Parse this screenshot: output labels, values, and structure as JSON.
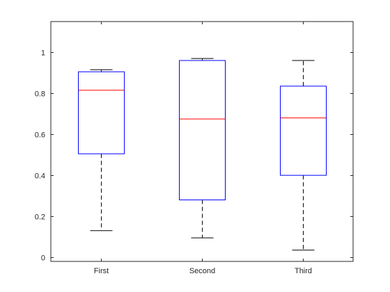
{
  "chart_data": {
    "type": "box",
    "title": "",
    "xlabel": "",
    "ylabel": "",
    "ylim": [
      -0.02,
      1.15
    ],
    "yticks": [
      0,
      0.2,
      0.4,
      0.6,
      0.8,
      1
    ],
    "ytick_labels": [
      "0",
      "0.2",
      "0.4",
      "0.6",
      "0.8",
      "1"
    ],
    "grid": false,
    "categories": [
      "First",
      "Second",
      "Third"
    ],
    "boxes": [
      {
        "category": "First",
        "whisker_low": 0.13,
        "q1": 0.505,
        "median": 0.815,
        "q3": 0.905,
        "whisker_high": 0.915
      },
      {
        "category": "Second",
        "whisker_low": 0.095,
        "q1": 0.28,
        "median": 0.675,
        "q3": 0.96,
        "whisker_high": 0.97
      },
      {
        "category": "Third",
        "whisker_low": 0.035,
        "q1": 0.4,
        "median": 0.68,
        "q3": 0.835,
        "whisker_high": 0.96
      }
    ],
    "colors": {
      "box": "#0000ff",
      "median": "#ff0000",
      "whisker": "#000000",
      "axis": "#262626"
    }
  }
}
